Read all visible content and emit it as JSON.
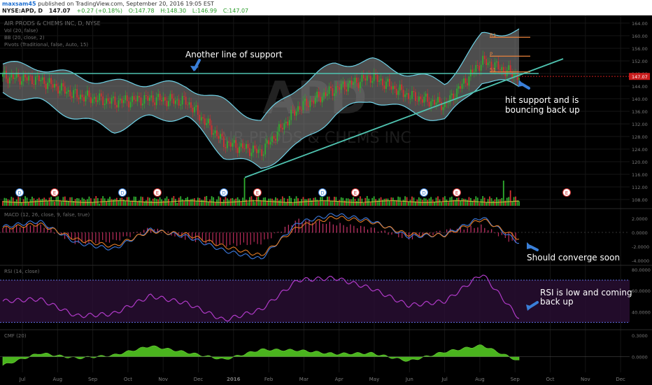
{
  "header": {
    "user": "maxsam45",
    "published": "published on TradingView.com, September 20, 2016 19:05 EST",
    "symbol": "NYSE:APD, D",
    "price": "147.07",
    "change": "+0.27 (+0.18%)",
    "open": "O:147.78",
    "high": "H:148.30",
    "low": "L:146.99",
    "close": "C:147.07"
  },
  "main_pane": {
    "title": "AIR PRODS & CHEMS INC, D, NYSE",
    "indicators": [
      "Vol (20, false)",
      "BB (20, close, 2)",
      "Pivots (Traditional, false, Auto, 15)"
    ],
    "watermark": "APD",
    "watermark_sub": "AIR PRODS & CHEMS INC",
    "price_axis": [
      "164.00",
      "160.00",
      "156.00",
      "152.00",
      "148.00",
      "144.00",
      "140.00",
      "136.00",
      "132.00",
      "128.00",
      "124.00",
      "120.00",
      "116.00",
      "112.00",
      "108.00"
    ],
    "last_price_label": "147.07",
    "pivot_labels": [
      "R1",
      "P",
      "S1"
    ],
    "event_markers": [
      "D",
      "E",
      "D",
      "E",
      "D",
      "E",
      "D",
      "E",
      "D",
      "E",
      "E"
    ]
  },
  "annotations": {
    "support": "Another line of support",
    "bounce_line1": "hit support and is",
    "bounce_line2": "bouncing back up",
    "converge": "Should converge soon",
    "rsi_line1": "RSI is low and coming",
    "rsi_line2": "back up"
  },
  "macd_pane": {
    "label": "MACD (12, 26, close, 9, false, true)",
    "axis": [
      "2.0000",
      "0.0000",
      "-2.0000",
      "-4.0000"
    ]
  },
  "rsi_pane": {
    "label": "RSI (14, close)",
    "axis": [
      "80.0000",
      "60.0000",
      "40.0000"
    ]
  },
  "cmf_pane": {
    "label": "CMF (20)",
    "axis": [
      "0.3000",
      "0.0000"
    ]
  },
  "time_axis": [
    "Jul",
    "Aug",
    "Sep",
    "Oct",
    "Nov",
    "Dec",
    "2016",
    "Feb",
    "Mar",
    "Apr",
    "May",
    "Jun",
    "Jul",
    "Aug",
    "Sep",
    "Oct",
    "Nov",
    "Dec"
  ],
  "colors": {
    "background": "#000000",
    "band_fill": "#8c8c8c",
    "band_edge": "#6fd3e8",
    "support_line": "#4fc3b0",
    "candle_up": "#2fae2f",
    "candle_down": "#d23030",
    "macd": "#3d7be0",
    "signal": "#e07a25",
    "rsi": "#b03ac8",
    "cmf": "#4ab41e",
    "pivot": "#e8823c",
    "arrow": "#3a7fd8",
    "last_price": "#c91c1c"
  },
  "chart_data": [
    {
      "type": "candlestick",
      "title": "AIR PRODS & CHEMS INC, D, NYSE",
      "x": [
        "2015-07",
        "2015-08",
        "2015-09",
        "2015-10",
        "2015-11",
        "2015-12",
        "2016-01",
        "2016-02",
        "2016-03",
        "2016-04",
        "2016-05",
        "2016-06",
        "2016-07",
        "2016-08",
        "2016-09"
      ],
      "close": [
        147,
        146,
        141,
        139,
        140,
        139,
        126,
        123,
        137,
        143,
        147,
        141,
        138,
        152,
        147.07
      ],
      "upper_band": [
        151,
        150,
        147,
        145,
        145,
        144,
        139,
        133,
        144,
        151,
        152,
        148,
        145,
        160,
        162
      ],
      "lower_band": [
        142,
        139,
        134,
        130,
        134,
        134,
        122,
        118,
        125,
        135,
        140,
        136,
        133,
        146,
        144
      ],
      "ylim": [
        106,
        166
      ],
      "horizontal_support": 148,
      "trendline": [
        [
          "2016-01-20",
          115
        ],
        [
          "2016-09-30",
          150
        ]
      ],
      "pivots": {
        "R1": 159.5,
        "P": 153.5,
        "S1": 148.5
      }
    },
    {
      "type": "line",
      "title": "MACD (12, 26, close, 9, false, true)",
      "x": [
        "2015-07",
        "2015-08",
        "2015-09",
        "2015-10",
        "2015-11",
        "2015-12",
        "2016-01",
        "2016-02",
        "2016-03",
        "2016-04",
        "2016-05",
        "2016-06",
        "2016-07",
        "2016-08",
        "2016-09"
      ],
      "series": [
        {
          "name": "MACD",
          "values": [
            0.8,
            1.6,
            -1.5,
            -2.4,
            0.4,
            -0.6,
            -2.6,
            -3.8,
            1.4,
            2.6,
            1.7,
            -0.6,
            -0.3,
            2.2,
            -1.5
          ]
        },
        {
          "name": "Signal",
          "values": [
            0.6,
            1.2,
            -1.0,
            -2.0,
            0.2,
            -0.3,
            -2.0,
            -3.3,
            0.8,
            2.2,
            1.5,
            -0.3,
            -0.4,
            1.9,
            -0.9
          ]
        }
      ],
      "ylim": [
        -4.5,
        3
      ]
    },
    {
      "type": "line",
      "title": "RSI (14, close)",
      "x": [
        "2015-07",
        "2015-08",
        "2015-09",
        "2015-10",
        "2015-11",
        "2015-12",
        "2016-01",
        "2016-02",
        "2016-03",
        "2016-04",
        "2016-05",
        "2016-06",
        "2016-07",
        "2016-08",
        "2016-09"
      ],
      "values": [
        50,
        52,
        36,
        38,
        55,
        48,
        32,
        42,
        70,
        72,
        62,
        46,
        50,
        76,
        34
      ],
      "ylim": [
        25,
        82
      ]
    },
    {
      "type": "area",
      "title": "CMF (20)",
      "x": [
        "2015-07",
        "2015-08",
        "2015-09",
        "2015-10",
        "2015-11",
        "2015-12",
        "2016-01",
        "2016-02",
        "2016-03",
        "2016-04",
        "2016-05",
        "2016-06",
        "2016-07",
        "2016-08",
        "2016-09"
      ],
      "values": [
        -0.12,
        0.05,
        -0.02,
        0.02,
        0.15,
        0.06,
        -0.04,
        0.1,
        0.09,
        0.04,
        0.05,
        -0.06,
        0.07,
        0.16,
        -0.06
      ],
      "ylim": [
        -0.2,
        0.35
      ]
    }
  ]
}
